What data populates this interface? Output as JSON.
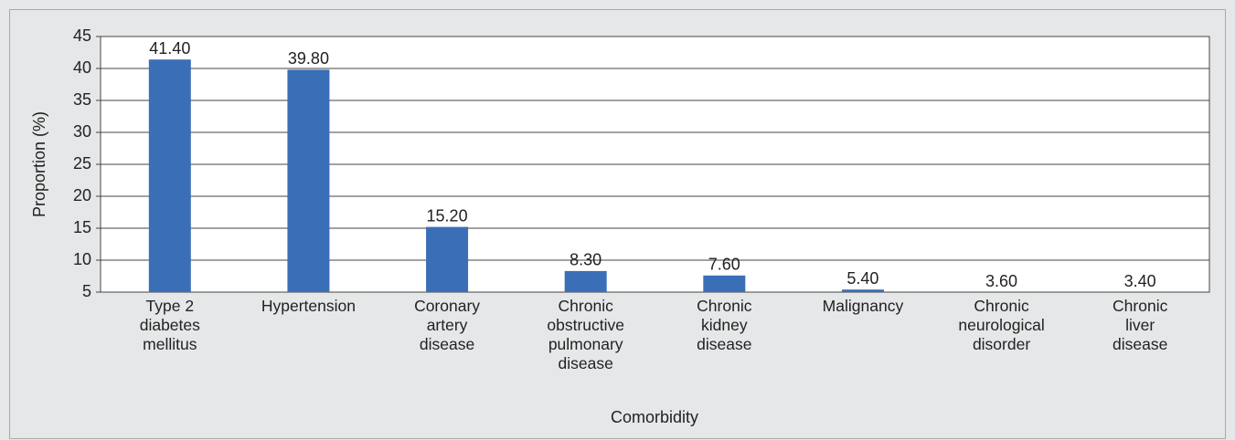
{
  "chart_data": {
    "type": "bar",
    "x_label": "Comorbidity",
    "y_label": "Proportion (%)",
    "categories": [
      "Type 2\ndiabetes\nmellitus",
      "Hypertension",
      "Coronary\nartery\ndisease",
      "Chronic\nobstructive\npulmonary\ndisease",
      "Chronic\nkidney\ndisease",
      "Malignancy",
      "Chronic\nneurological\ndisorder",
      "Chronic\nliver\ndisease"
    ],
    "values": [
      41.4,
      39.8,
      15.2,
      8.3,
      7.6,
      5.4,
      3.6,
      3.4
    ],
    "value_labels": [
      "41.40",
      "39.80",
      "15.20",
      "8.30",
      "7.60",
      "5.40",
      "3.60",
      "3.40"
    ],
    "color": "#3a6fb8",
    "ylim": [
      5,
      45
    ],
    "yticks": [
      5,
      10,
      15,
      20,
      25,
      30,
      35,
      40,
      45
    ],
    "grid": true
  }
}
